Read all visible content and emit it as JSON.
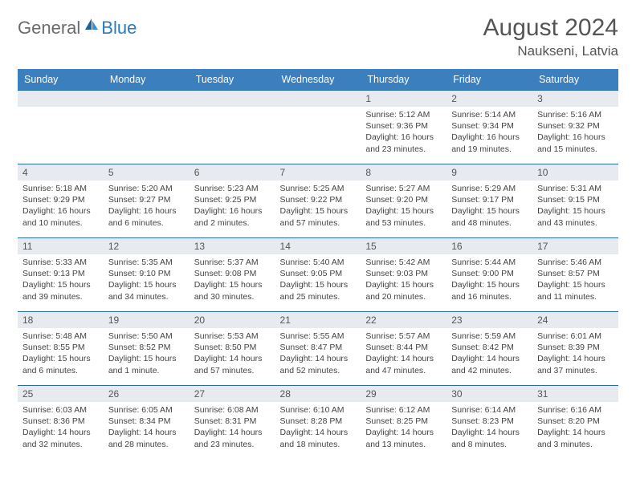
{
  "brand": {
    "part1": "General",
    "part2": "Blue"
  },
  "title": "August 2024",
  "location": "Naukseni, Latvia",
  "colors": {
    "header_bg": "#3b7fbf",
    "header_text": "#ffffff",
    "daynum_bg": "#e7eaee",
    "border": "#2a6aa8",
    "body_text": "#444444",
    "title_text": "#555555"
  },
  "day_names": [
    "Sunday",
    "Monday",
    "Tuesday",
    "Wednesday",
    "Thursday",
    "Friday",
    "Saturday"
  ],
  "weeks": [
    [
      null,
      null,
      null,
      null,
      {
        "n": "1",
        "sr": "5:12 AM",
        "ss": "9:36 PM",
        "dl": "16 hours and 23 minutes."
      },
      {
        "n": "2",
        "sr": "5:14 AM",
        "ss": "9:34 PM",
        "dl": "16 hours and 19 minutes."
      },
      {
        "n": "3",
        "sr": "5:16 AM",
        "ss": "9:32 PM",
        "dl": "16 hours and 15 minutes."
      }
    ],
    [
      {
        "n": "4",
        "sr": "5:18 AM",
        "ss": "9:29 PM",
        "dl": "16 hours and 10 minutes."
      },
      {
        "n": "5",
        "sr": "5:20 AM",
        "ss": "9:27 PM",
        "dl": "16 hours and 6 minutes."
      },
      {
        "n": "6",
        "sr": "5:23 AM",
        "ss": "9:25 PM",
        "dl": "16 hours and 2 minutes."
      },
      {
        "n": "7",
        "sr": "5:25 AM",
        "ss": "9:22 PM",
        "dl": "15 hours and 57 minutes."
      },
      {
        "n": "8",
        "sr": "5:27 AM",
        "ss": "9:20 PM",
        "dl": "15 hours and 53 minutes."
      },
      {
        "n": "9",
        "sr": "5:29 AM",
        "ss": "9:17 PM",
        "dl": "15 hours and 48 minutes."
      },
      {
        "n": "10",
        "sr": "5:31 AM",
        "ss": "9:15 PM",
        "dl": "15 hours and 43 minutes."
      }
    ],
    [
      {
        "n": "11",
        "sr": "5:33 AM",
        "ss": "9:13 PM",
        "dl": "15 hours and 39 minutes."
      },
      {
        "n": "12",
        "sr": "5:35 AM",
        "ss": "9:10 PM",
        "dl": "15 hours and 34 minutes."
      },
      {
        "n": "13",
        "sr": "5:37 AM",
        "ss": "9:08 PM",
        "dl": "15 hours and 30 minutes."
      },
      {
        "n": "14",
        "sr": "5:40 AM",
        "ss": "9:05 PM",
        "dl": "15 hours and 25 minutes."
      },
      {
        "n": "15",
        "sr": "5:42 AM",
        "ss": "9:03 PM",
        "dl": "15 hours and 20 minutes."
      },
      {
        "n": "16",
        "sr": "5:44 AM",
        "ss": "9:00 PM",
        "dl": "15 hours and 16 minutes."
      },
      {
        "n": "17",
        "sr": "5:46 AM",
        "ss": "8:57 PM",
        "dl": "15 hours and 11 minutes."
      }
    ],
    [
      {
        "n": "18",
        "sr": "5:48 AM",
        "ss": "8:55 PM",
        "dl": "15 hours and 6 minutes."
      },
      {
        "n": "19",
        "sr": "5:50 AM",
        "ss": "8:52 PM",
        "dl": "15 hours and 1 minute."
      },
      {
        "n": "20",
        "sr": "5:53 AM",
        "ss": "8:50 PM",
        "dl": "14 hours and 57 minutes."
      },
      {
        "n": "21",
        "sr": "5:55 AM",
        "ss": "8:47 PM",
        "dl": "14 hours and 52 minutes."
      },
      {
        "n": "22",
        "sr": "5:57 AM",
        "ss": "8:44 PM",
        "dl": "14 hours and 47 minutes."
      },
      {
        "n": "23",
        "sr": "5:59 AM",
        "ss": "8:42 PM",
        "dl": "14 hours and 42 minutes."
      },
      {
        "n": "24",
        "sr": "6:01 AM",
        "ss": "8:39 PM",
        "dl": "14 hours and 37 minutes."
      }
    ],
    [
      {
        "n": "25",
        "sr": "6:03 AM",
        "ss": "8:36 PM",
        "dl": "14 hours and 32 minutes."
      },
      {
        "n": "26",
        "sr": "6:05 AM",
        "ss": "8:34 PM",
        "dl": "14 hours and 28 minutes."
      },
      {
        "n": "27",
        "sr": "6:08 AM",
        "ss": "8:31 PM",
        "dl": "14 hours and 23 minutes."
      },
      {
        "n": "28",
        "sr": "6:10 AM",
        "ss": "8:28 PM",
        "dl": "14 hours and 18 minutes."
      },
      {
        "n": "29",
        "sr": "6:12 AM",
        "ss": "8:25 PM",
        "dl": "14 hours and 13 minutes."
      },
      {
        "n": "30",
        "sr": "6:14 AM",
        "ss": "8:23 PM",
        "dl": "14 hours and 8 minutes."
      },
      {
        "n": "31",
        "sr": "6:16 AM",
        "ss": "8:20 PM",
        "dl": "14 hours and 3 minutes."
      }
    ]
  ],
  "labels": {
    "sunrise": "Sunrise:",
    "sunset": "Sunset:",
    "daylight": "Daylight:"
  }
}
